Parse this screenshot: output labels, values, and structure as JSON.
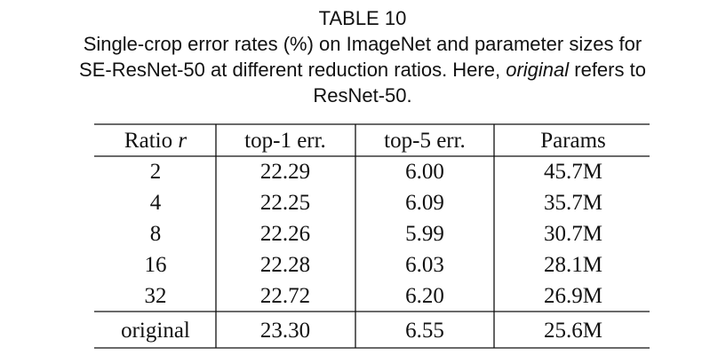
{
  "title": "TABLE 10",
  "caption": [
    [
      "Single-crop error rates (%) on ImageNet and parameter sizes for"
    ],
    [
      "SE-ResNet-50 at different reduction ratios. Here, ",
      "original",
      " refers to"
    ],
    [
      "ResNet-50."
    ]
  ],
  "table": {
    "header": [
      [
        "Ratio ",
        "r"
      ],
      "top-1 err.",
      "top-5 err.",
      "Params"
    ],
    "rows": [
      [
        "2",
        "22.29",
        "6.00",
        "45.7M"
      ],
      [
        "4",
        "22.25",
        "6.09",
        "35.7M"
      ],
      [
        "8",
        "22.26",
        "5.99",
        "30.7M"
      ],
      [
        "16",
        "22.28",
        "6.03",
        "28.1M"
      ],
      [
        "32",
        "22.72",
        "6.20",
        "26.9M"
      ],
      [
        "original",
        "23.30",
        "6.55",
        "25.6M"
      ]
    ]
  }
}
